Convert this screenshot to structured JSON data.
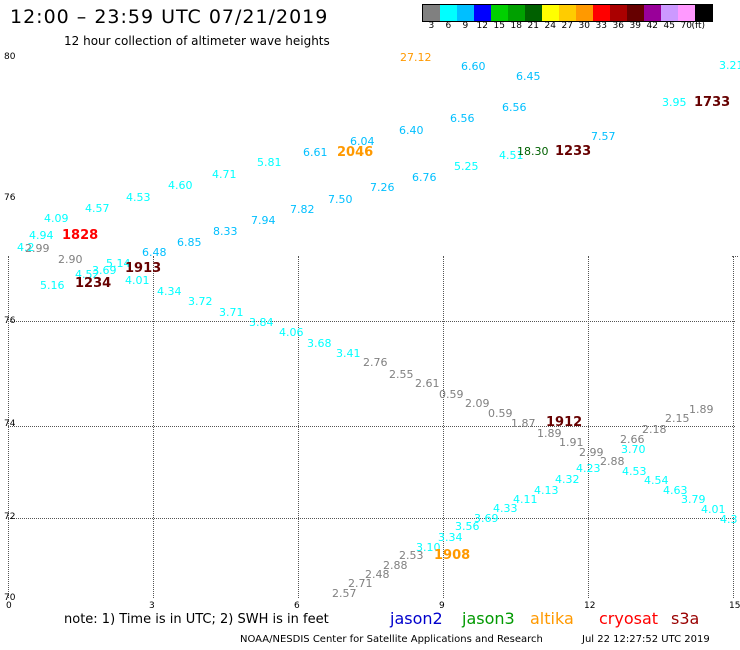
{
  "header": {
    "title": "12:00 – 23:59 UTC 07/21/2019",
    "subtitle": "12 hour collection of altimeter wave heights"
  },
  "legend": {
    "colors": [
      "#808080",
      "#00ffff",
      "#00bfff",
      "#0000ff",
      "#00d000",
      "#00a000",
      "#006000",
      "#ffff00",
      "#ffcc00",
      "#ff9900",
      "#ff0000",
      "#aa0000",
      "#660000",
      "#990099",
      "#cc99ff",
      "#ff99ff",
      "#000000"
    ],
    "labels": [
      "3",
      "6",
      "9",
      "12",
      "15",
      "18",
      "21",
      "24",
      "27",
      "30",
      "33",
      "36",
      "39",
      "42",
      "45",
      "70",
      "(ft)"
    ]
  },
  "axes": {
    "x_ticks": [
      "0",
      "3",
      "6",
      "9",
      "12",
      "15"
    ],
    "y_ticks": [
      "80",
      "76",
      "76",
      "74",
      "72",
      "70"
    ]
  },
  "observations": [
    {
      "text": "27.12",
      "color": "#ff9900"
    },
    {
      "text": "6.60",
      "color": "#00bfff"
    },
    {
      "text": "6.45",
      "color": "#00bfff"
    },
    {
      "text": "3.21",
      "color": "#00ffff"
    },
    {
      "text": "3.95",
      "color": "#00ffff"
    },
    {
      "text": "1733",
      "color": "#660000"
    },
    {
      "text": "6.56",
      "color": "#00bfff"
    },
    {
      "text": "6.40",
      "color": "#00bfff"
    },
    {
      "text": "6.56",
      "color": "#00bfff"
    },
    {
      "text": "7.57",
      "color": "#00bfff"
    },
    {
      "text": "6.04",
      "color": "#00bfff"
    },
    {
      "text": "6.61",
      "color": "#00bfff"
    },
    {
      "text": "2046",
      "color": "#ff9900"
    },
    {
      "text": "4.51",
      "color": "#00ffff"
    },
    {
      "text": "18.30",
      "color": "#006000"
    },
    {
      "text": "1233",
      "color": "#660000"
    },
    {
      "text": "5.81",
      "color": "#00ffff"
    },
    {
      "text": "5.25",
      "color": "#00ffff"
    },
    {
      "text": "4.71",
      "color": "#00ffff"
    },
    {
      "text": "6.76",
      "color": "#00bfff"
    },
    {
      "text": "7.26",
      "color": "#00bfff"
    },
    {
      "text": "4.60",
      "color": "#00ffff"
    },
    {
      "text": "4.53",
      "color": "#00ffff"
    },
    {
      "text": "7.50",
      "color": "#00bfff"
    },
    {
      "text": "4.57",
      "color": "#00ffff"
    },
    {
      "text": "7.82",
      "color": "#00bfff"
    },
    {
      "text": "4.09",
      "color": "#00ffff"
    },
    {
      "text": "7.94",
      "color": "#00bfff"
    },
    {
      "text": "4.94",
      "color": "#00ffff"
    },
    {
      "text": "1828",
      "color": "#ff0000"
    },
    {
      "text": "8.33",
      "color": "#00bfff"
    },
    {
      "text": "4.2",
      "color": "#00ffff"
    },
    {
      "text": "2.99",
      "color": "#808080"
    },
    {
      "text": "6.85",
      "color": "#00bfff"
    },
    {
      "text": "6.48",
      "color": "#00bfff"
    },
    {
      "text": "2.90",
      "color": "#808080"
    },
    {
      "text": "5.14",
      "color": "#00ffff"
    },
    {
      "text": "1913",
      "color": "#660000"
    },
    {
      "text": "3.69",
      "color": "#00ffff"
    },
    {
      "text": "4.52",
      "color": "#00ffff"
    },
    {
      "text": "4.01",
      "color": "#00ffff"
    },
    {
      "text": "5.16",
      "color": "#00ffff"
    },
    {
      "text": "1234",
      "color": "#660000"
    },
    {
      "text": "4.34",
      "color": "#00ffff"
    },
    {
      "text": "3.72",
      "color": "#00ffff"
    },
    {
      "text": "3.71",
      "color": "#00ffff"
    },
    {
      "text": "3.84",
      "color": "#00ffff"
    },
    {
      "text": "4.06",
      "color": "#00ffff"
    },
    {
      "text": "3.68",
      "color": "#00ffff"
    },
    {
      "text": "3.41",
      "color": "#00ffff"
    },
    {
      "text": "2.76",
      "color": "#808080"
    },
    {
      "text": "2.55",
      "color": "#808080"
    },
    {
      "text": "2.61",
      "color": "#808080"
    },
    {
      "text": "0.59",
      "color": "#808080"
    },
    {
      "text": "2.09",
      "color": "#808080"
    },
    {
      "text": "0.59",
      "color": "#808080"
    },
    {
      "text": "1.87",
      "color": "#808080"
    },
    {
      "text": "1912",
      "color": "#660000"
    },
    {
      "text": "1.89",
      "color": "#808080"
    },
    {
      "text": "1.91",
      "color": "#808080"
    },
    {
      "text": "1.89",
      "color": "#808080"
    },
    {
      "text": "2.15",
      "color": "#808080"
    },
    {
      "text": "2.18",
      "color": "#808080"
    },
    {
      "text": "2.66",
      "color": "#808080"
    },
    {
      "text": "2.99",
      "color": "#808080"
    },
    {
      "text": "2.88",
      "color": "#808080"
    },
    {
      "text": "3.70",
      "color": "#00ffff"
    },
    {
      "text": "4.23",
      "color": "#00ffff"
    },
    {
      "text": "4.53",
      "color": "#00ffff"
    },
    {
      "text": "4.32",
      "color": "#00ffff"
    },
    {
      "text": "4.54",
      "color": "#00ffff"
    },
    {
      "text": "4.13",
      "color": "#00ffff"
    },
    {
      "text": "4.63",
      "color": "#00ffff"
    },
    {
      "text": "4.11",
      "color": "#00ffff"
    },
    {
      "text": "3.79",
      "color": "#00ffff"
    },
    {
      "text": "4.33",
      "color": "#00ffff"
    },
    {
      "text": "4.01",
      "color": "#00ffff"
    },
    {
      "text": "3.69",
      "color": "#00ffff"
    },
    {
      "text": "4.3",
      "color": "#00ffff"
    },
    {
      "text": "3.56",
      "color": "#00ffff"
    },
    {
      "text": "3.34",
      "color": "#00ffff"
    },
    {
      "text": "3.10",
      "color": "#00ffff"
    },
    {
      "text": "1908",
      "color": "#ff9900"
    },
    {
      "text": "2.53",
      "color": "#808080"
    },
    {
      "text": "2.88",
      "color": "#808080"
    },
    {
      "text": "2.48",
      "color": "#808080"
    },
    {
      "text": "2.71",
      "color": "#808080"
    },
    {
      "text": "2.57",
      "color": "#808080"
    }
  ],
  "footer": {
    "note": "note: 1) Time is in UTC; 2) SWH is in feet",
    "satellites": [
      {
        "name": "jason2",
        "color": "#0000cc"
      },
      {
        "name": "jason3",
        "color": "#009900"
      },
      {
        "name": "altika",
        "color": "#ff9900"
      },
      {
        "name": "cryosat",
        "color": "#ff0000"
      },
      {
        "name": "s3a",
        "color": "#990000"
      }
    ],
    "credit": "NOAA/NESDIS Center for Satellite Applications and Research",
    "timestamp": "Jul 22 12:27:52 UTC 2019"
  }
}
